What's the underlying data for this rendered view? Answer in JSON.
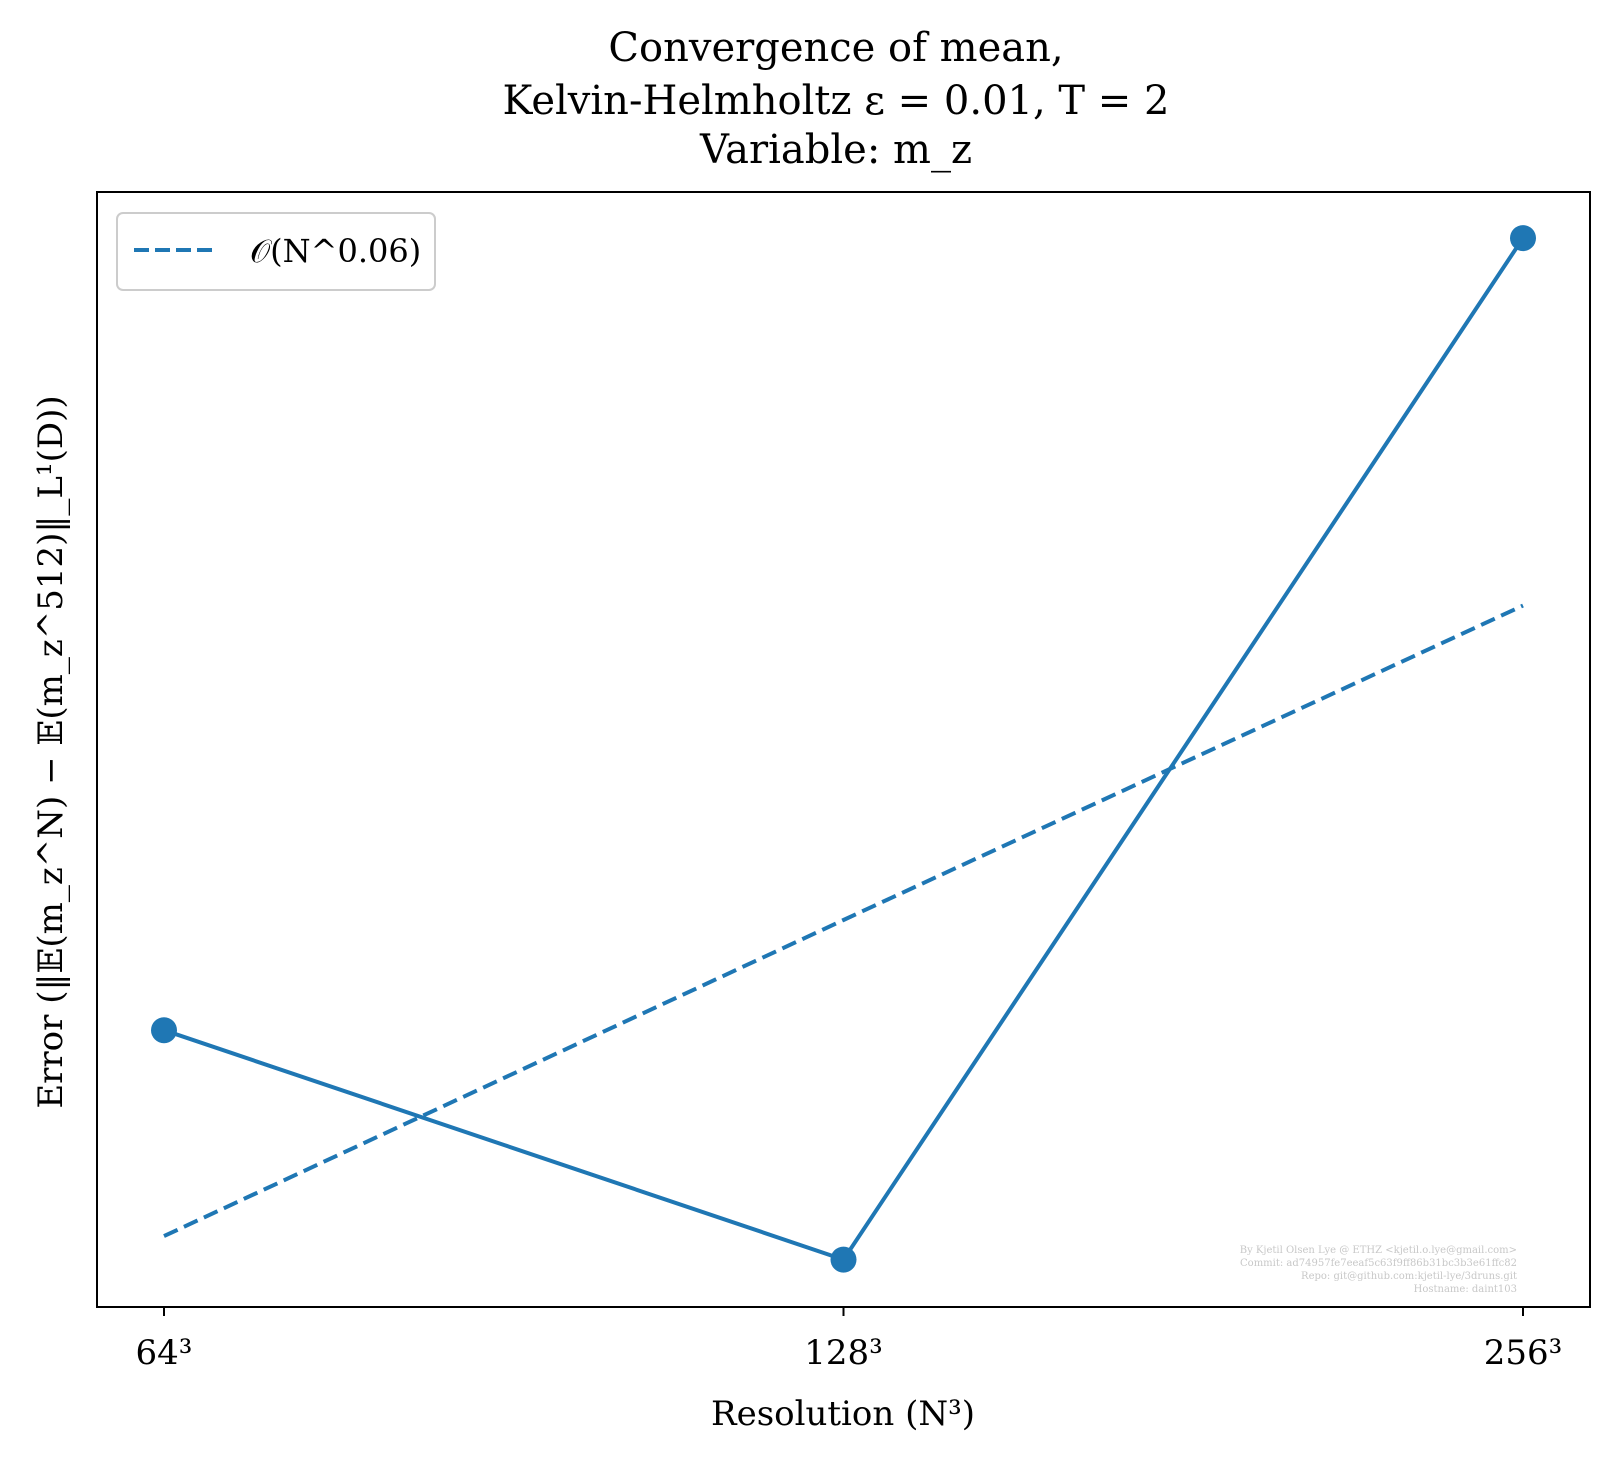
{
  "chart_data": {
    "type": "line",
    "title": [
      "Convergence of mean,",
      "Kelvin-Helmholtz ε = 0.01, T = 2",
      "Variable: m_z"
    ],
    "xlabel": "Resolution (N³)",
    "ylabel": "Error (‖𝔼(m_z^N) − 𝔼(m_z^512)‖_L¹(D))",
    "x_scale": "log2",
    "y_scale": "log",
    "categories": [
      "64³",
      "128³",
      "256³"
    ],
    "x": [
      64,
      128,
      256
    ],
    "series": [
      {
        "values": [
          0.0038,
          0.0036,
          0.00458
        ],
        "style": "solid",
        "marker": "circle",
        "color": "#1f77b4"
      },
      {
        "name": "𝒪(N^0.06)",
        "values": [
          0.00362,
          0.0039,
          0.0042
        ],
        "style": "dashed",
        "color": "#1f77b4"
      }
    ],
    "ylim": [
      0.00356,
      0.00463
    ],
    "yticks_shown": false,
    "legend": "top-left",
    "grid": false,
    "watermark": [
      "By Kjetil Olsen Lye @ ETHZ <kjetil.o.lye@gmail.com>",
      "Commit: ad74957fe7eeaf5c63f9ff86b31bc3b3e61ffc82",
      "Repo: git@github.com:kjetil-lye/3druns.git",
      "Hostname: daint103"
    ]
  }
}
